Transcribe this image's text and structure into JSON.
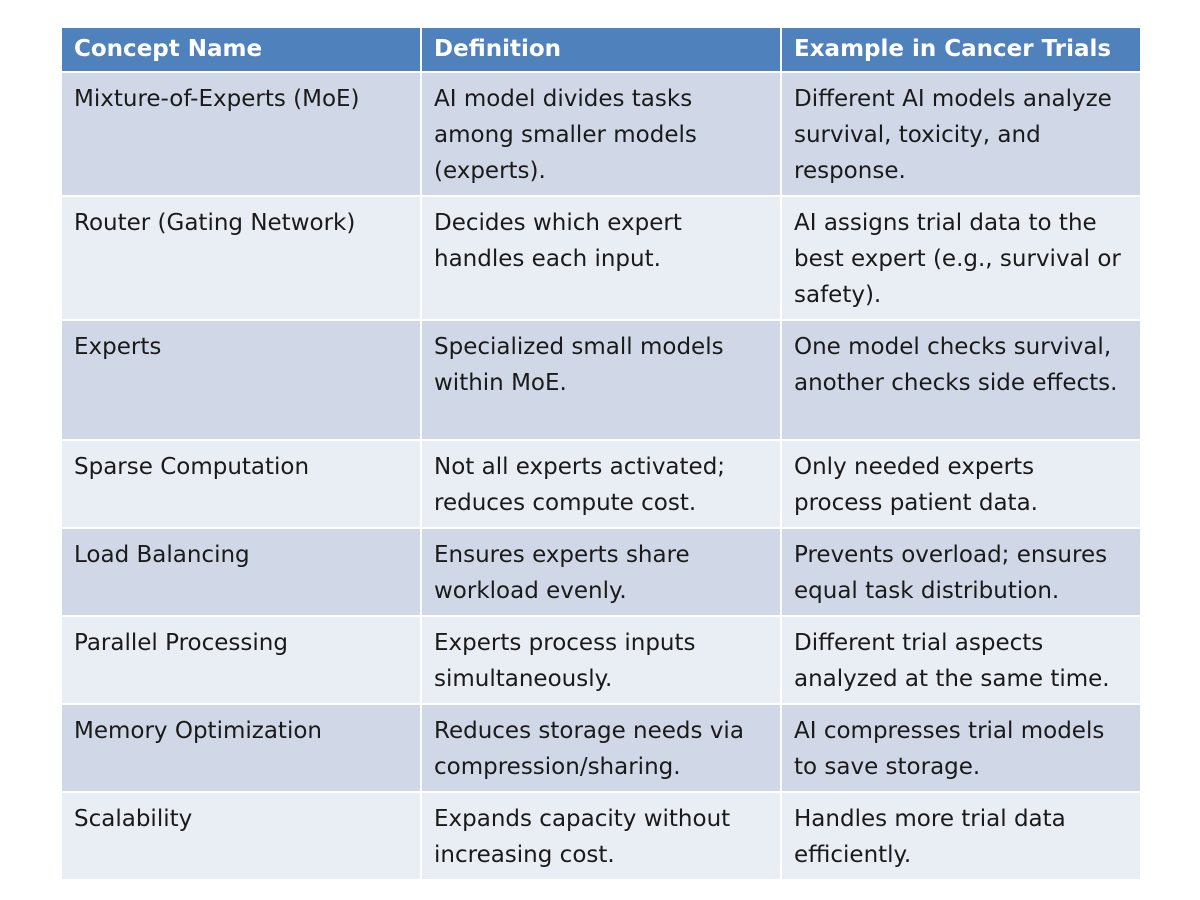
{
  "table": {
    "headers": [
      "Concept Name",
      "Definition",
      "Example in Cancer Trials"
    ],
    "rows": [
      [
        "Mixture-of-Experts (MoE)",
        "AI model divides tasks among smaller models (experts).",
        "Different AI models analyze survival, toxicity, and response."
      ],
      [
        "Router (Gating Network)",
        "Decides which expert handles each input.",
        "AI assigns trial data to the best expert (e.g., survival or safety)."
      ],
      [
        "Experts",
        "Specialized small models within MoE.",
        "One model checks survival, another checks side effects."
      ],
      [
        "Sparse Computation",
        "Not all experts activated; reduces compute cost.",
        "Only needed experts process patient data."
      ],
      [
        "Load Balancing",
        "Ensures experts share workload evenly.",
        "Prevents overload; ensures equal task distribution."
      ],
      [
        "Parallel Processing",
        "Experts process inputs simultaneously.",
        "Different trial aspects analyzed at the same time."
      ],
      [
        "Memory Optimization",
        "Reduces storage needs via compression/sharing.",
        "AI compresses trial models to save storage."
      ],
      [
        "Scalability",
        "Expands capacity without increasing cost.",
        "Handles more trial data efficiently."
      ]
    ]
  },
  "colors": {
    "header_bg": "#4f81bd",
    "row_odd_bg": "#d0d8e8",
    "row_even_bg": "#e9edf4"
  }
}
